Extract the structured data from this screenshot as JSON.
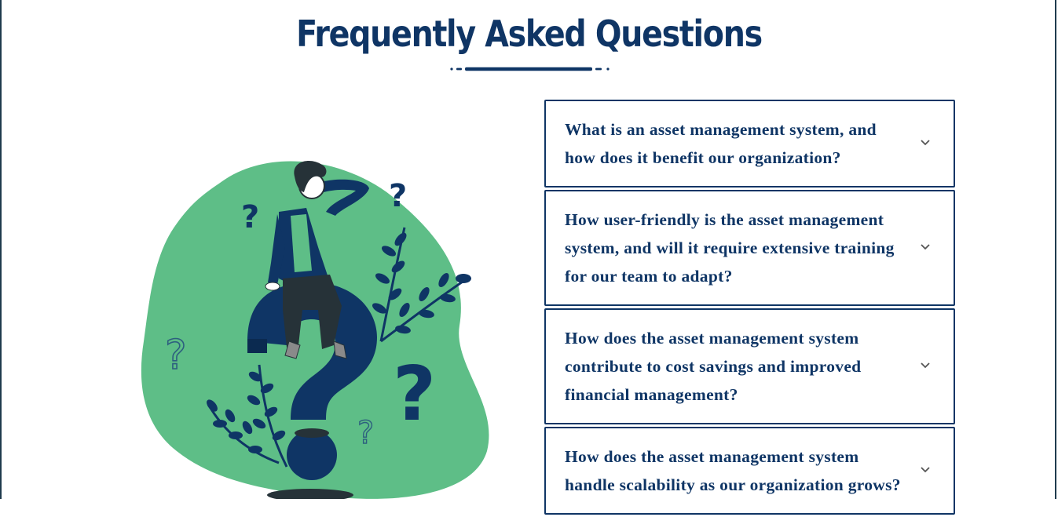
{
  "header": {
    "title": "Frequently Asked Questions"
  },
  "colors": {
    "navy": "#0f3565",
    "green": "#5ebe87",
    "dark": "#263238"
  },
  "faq": {
    "items": [
      {
        "question": "What is an asset management system, and how does it benefit our organization?",
        "icon": "chevron-down-icon"
      },
      {
        "question": "How user-friendly is the asset management system, and will it require extensive training for our team to adapt?",
        "icon": "chevron-down-icon"
      },
      {
        "question": "How does the asset management system contribute to cost savings and improved financial management?",
        "icon": "chevron-down-icon"
      },
      {
        "question": "How does the asset management system handle scalability as our organization grows?",
        "icon": "chevron-down-icon"
      }
    ]
  }
}
